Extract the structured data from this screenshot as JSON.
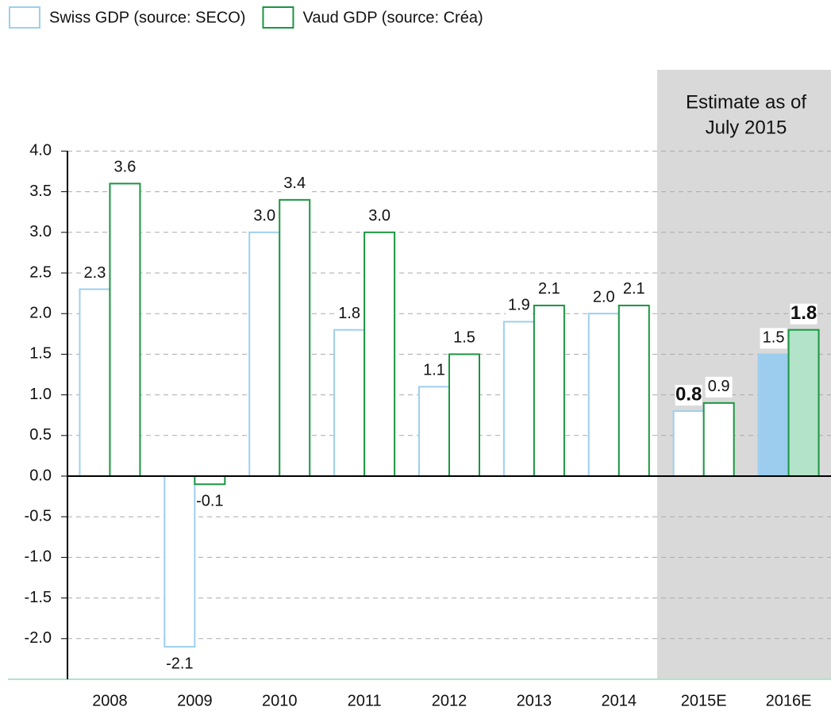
{
  "chart_data": {
    "type": "bar",
    "annotation": [
      "Estimate as of",
      "July 2015"
    ],
    "categories": [
      "2008",
      "2009",
      "2010",
      "2011",
      "2012",
      "2013",
      "2014",
      "2015E",
      "2016E"
    ],
    "series": [
      {
        "name": "Swiss GDP (source: SECO)",
        "color": "#9ecfee",
        "highlight_color": "#9ccdee",
        "values": [
          2.3,
          -2.1,
          3.0,
          1.8,
          1.1,
          1.9,
          2.0,
          0.8,
          1.5
        ],
        "value_labels": [
          "2.3",
          "-2.1",
          "3.0",
          "1.8",
          "1.1",
          "1.9",
          "2.0",
          "0.8",
          "1.5"
        ]
      },
      {
        "name": "Vaud GDP (source: Créa)",
        "color": "#1a9641",
        "highlight_color": "#b3e3c8",
        "values": [
          3.6,
          -0.1,
          3.4,
          3.0,
          1.5,
          2.1,
          2.1,
          0.9,
          1.8
        ],
        "value_labels": [
          "3.6",
          "-0.1",
          "3.4",
          "3.0",
          "1.5",
          "2.1",
          "2.1",
          "0.9",
          "1.8"
        ]
      }
    ],
    "ylim": [
      -2.5,
      5
    ],
    "yticks": [
      {
        "value": -2,
        "label": "-2.0"
      },
      -1.5,
      {
        "value": -1,
        "label": "-1.0"
      },
      -0.5,
      {
        "value": 0,
        "label": "0.0"
      },
      0.5,
      {
        "value": 1,
        "label": "1.0"
      },
      1.5,
      {
        "value": 2,
        "label": "2.0"
      },
      2.5,
      {
        "value": 3,
        "label": "3.0"
      },
      3.5,
      {
        "value": 4,
        "label": "4.0"
      }
    ],
    "grid": true
  }
}
